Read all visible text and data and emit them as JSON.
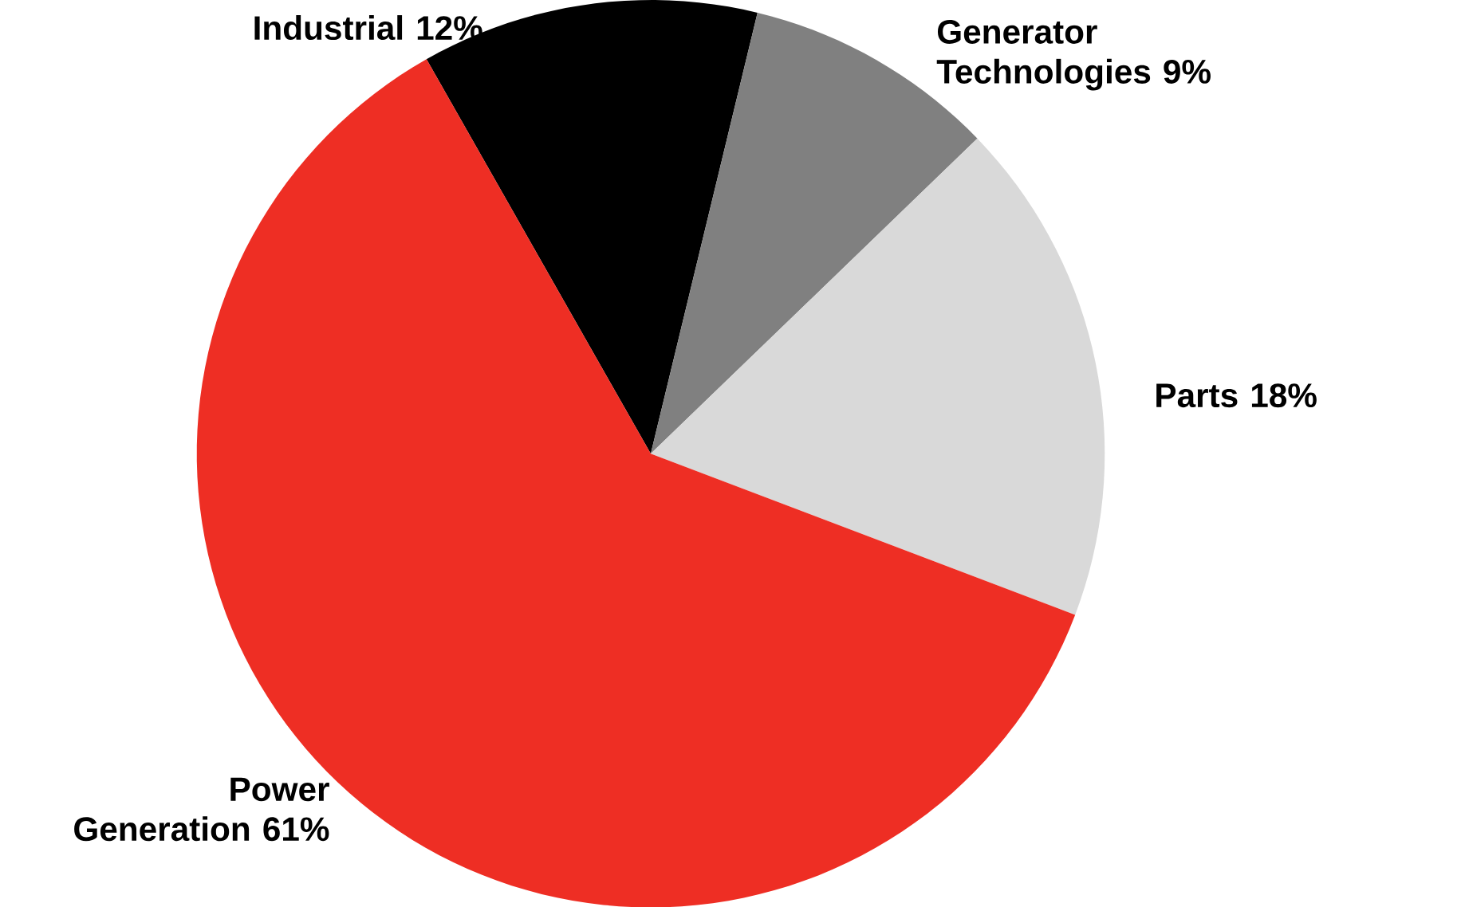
{
  "chart_data": {
    "type": "pie",
    "categories": [
      "Industrial",
      "Generator Technologies",
      "Parts",
      "Power Generation"
    ],
    "values": [
      12,
      9,
      18,
      61
    ],
    "value_labels": [
      "12%",
      "9%",
      "18%",
      "61%"
    ],
    "colors": [
      "#000000",
      "#808080",
      "#d9d9d9",
      "#ee2e24"
    ]
  }
}
